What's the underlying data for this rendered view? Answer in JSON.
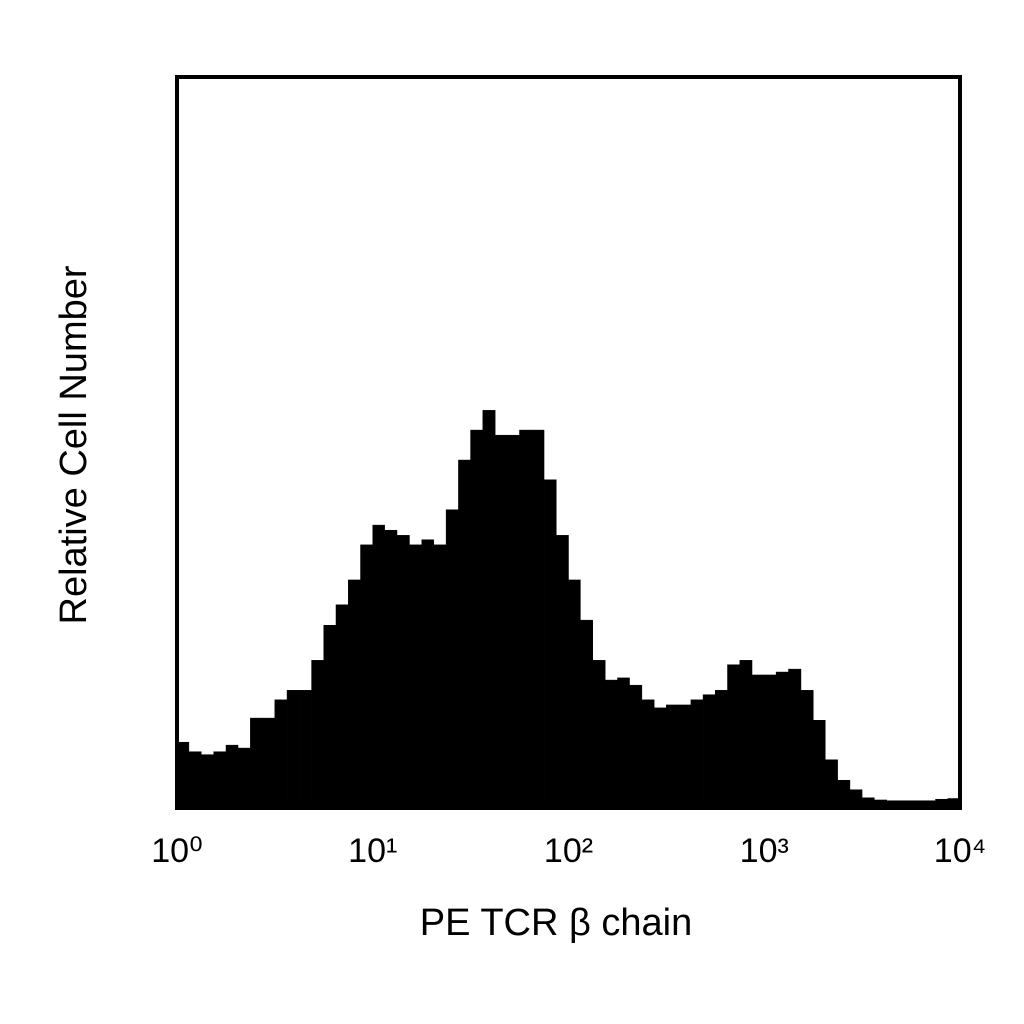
{
  "chart_data": {
    "type": "histogram",
    "x_label": "PE TCR β chain",
    "y_label": "Relative Cell Number",
    "xscale": "log",
    "xlim": [
      1,
      10000
    ],
    "ylim": [
      0,
      100
    ],
    "xticks": [
      {
        "value": 1,
        "label": "10⁰"
      },
      {
        "value": 10,
        "label": "10¹"
      },
      {
        "value": 100,
        "label": "10²"
      },
      {
        "value": 1000,
        "label": "10³"
      },
      {
        "value": 10000,
        "label": "10⁴"
      }
    ],
    "color": "#000000",
    "bins": [
      1,
      1.15,
      1.33,
      1.54,
      1.78,
      2.05,
      2.37,
      2.74,
      3.16,
      3.65,
      4.22,
      4.87,
      5.62,
      6.49,
      7.5,
      8.66,
      10,
      11.5,
      13.3,
      15.4,
      17.8,
      20.5,
      23.7,
      27.4,
      31.6,
      36.5,
      42.2,
      48.7,
      56.2,
      64.9,
      75,
      86.6,
      100,
      115,
      133,
      154,
      178,
      205,
      237,
      274,
      316,
      365,
      422,
      487,
      562,
      649,
      750,
      866,
      1000,
      1150,
      1330,
      1540,
      1780,
      2050,
      2370,
      2740,
      3160,
      3650,
      4220,
      4870,
      5620,
      6490,
      7500,
      8660,
      10000
    ],
    "values": [
      9,
      7.7,
      7.3,
      7.7,
      8.6,
      8.2,
      12.3,
      12.3,
      14.8,
      16.1,
      16.1,
      20.2,
      25,
      27.8,
      31.2,
      36,
      38.7,
      38,
      37.3,
      36,
      36.7,
      36,
      40.8,
      47.6,
      51.7,
      54.4,
      51,
      51,
      51.7,
      51.7,
      44.9,
      37.3,
      31.2,
      25.7,
      20.2,
      17.5,
      17.8,
      16.8,
      14.8,
      13.7,
      14.1,
      14.1,
      14.8,
      15.5,
      16.1,
      19.6,
      20.2,
      18.2,
      18.2,
      18.6,
      19,
      16.1,
      12,
      6.6,
      3.8,
      2.5,
      1.4,
      1.1,
      1,
      1,
      1,
      1,
      1.2,
      1.3
    ]
  }
}
